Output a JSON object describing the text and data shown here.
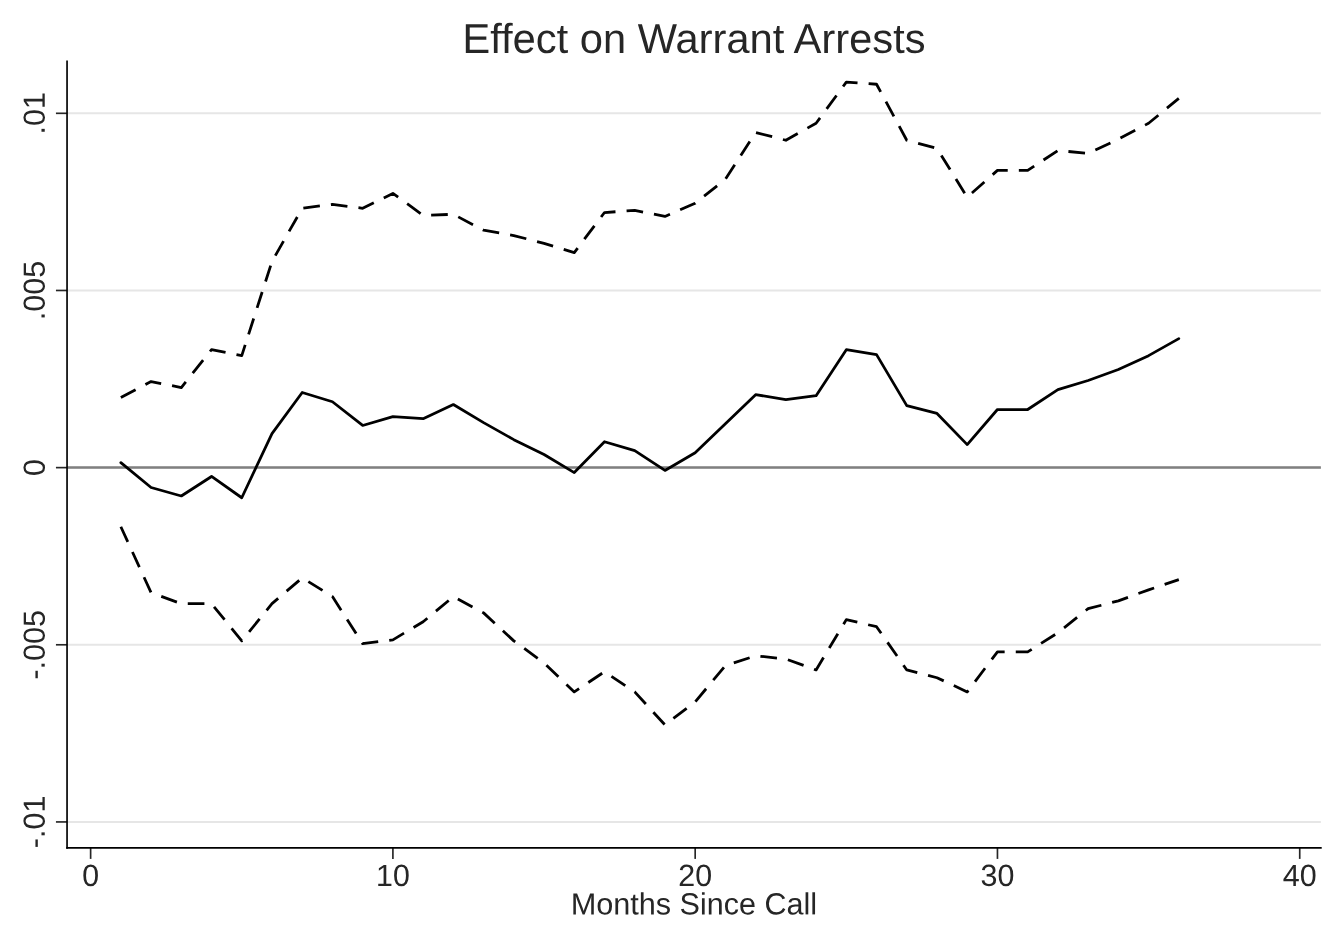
{
  "chart_data": {
    "type": "line",
    "title": "Effect on Warrant Arrests",
    "xlabel": "Months Since Call",
    "x": [
      1,
      2,
      3,
      4,
      5,
      6,
      7,
      8,
      9,
      10,
      11,
      12,
      13,
      14,
      15,
      16,
      17,
      18,
      19,
      20,
      21,
      22,
      23,
      24,
      25,
      26,
      27,
      28,
      29,
      30,
      31,
      32,
      33,
      34,
      35,
      36
    ],
    "series": [
      {
        "color": "#000000",
        "line_style": "solid",
        "values": [
          0.00014,
          -0.00056,
          -0.0008,
          -0.00025,
          -0.00085,
          0.00096,
          0.00212,
          0.00186,
          0.00119,
          0.00144,
          0.00138,
          0.00178,
          0.00127,
          0.00079,
          0.00037,
          -0.00014,
          0.00073,
          0.00048,
          -8e-05,
          0.00042,
          0.00124,
          0.00206,
          0.00192,
          0.00203,
          0.00333,
          0.00319,
          0.00175,
          0.00153,
          0.00065,
          0.00164,
          0.00164,
          0.0022,
          0.00246,
          0.00277,
          0.00316,
          0.00364
        ]
      },
      {
        "color": "#000000",
        "line_style": "dashed",
        "values": [
          0.00198,
          0.00243,
          0.00226,
          0.00333,
          0.00316,
          0.00582,
          0.00732,
          0.00743,
          0.00732,
          0.00774,
          0.00712,
          0.00715,
          0.0067,
          0.00655,
          0.00633,
          0.00607,
          0.0072,
          0.00726,
          0.00709,
          0.00746,
          0.00814,
          0.00946,
          0.00924,
          0.00972,
          0.01088,
          0.01082,
          0.00924,
          0.00901,
          0.00763,
          0.00839,
          0.00839,
          0.00895,
          0.00887,
          0.00927,
          0.00972,
          0.01042
        ]
      },
      {
        "color": "#000000",
        "line_style": "dashed",
        "values": [
          -0.00167,
          -0.00353,
          -0.00384,
          -0.00384,
          -0.00489,
          -0.00384,
          -0.00311,
          -0.00364,
          -0.00497,
          -0.00486,
          -0.00435,
          -0.00364,
          -0.0041,
          -0.00489,
          -0.00551,
          -0.00633,
          -0.00576,
          -0.00633,
          -0.00726,
          -0.00661,
          -0.00559,
          -0.00531,
          -0.0054,
          -0.00571,
          -0.00429,
          -0.00449,
          -0.00571,
          -0.00593,
          -0.00633,
          -0.0052,
          -0.0052,
          -0.00466,
          -0.00398,
          -0.00376,
          -0.00345,
          -0.00316
        ]
      }
    ],
    "xlim": [
      -0.78,
      40.7
    ],
    "xticks": [
      0,
      10,
      20,
      30,
      40
    ],
    "ylim": [
      -0.01073,
      0.01147
    ],
    "yticks": [
      {
        "value": -0.01,
        "label": "-.01"
      },
      {
        "value": -0.005,
        "label": "-.005"
      },
      {
        "value": 0,
        "label": "0"
      },
      {
        "value": 0.005,
        "label": ".005"
      },
      {
        "value": 0.01,
        "label": ".01"
      }
    ],
    "ref_lines": [
      {
        "axis": "y",
        "value": 0,
        "color": "#808080"
      }
    ],
    "grid": "y",
    "legend": false,
    "marker": "none"
  }
}
